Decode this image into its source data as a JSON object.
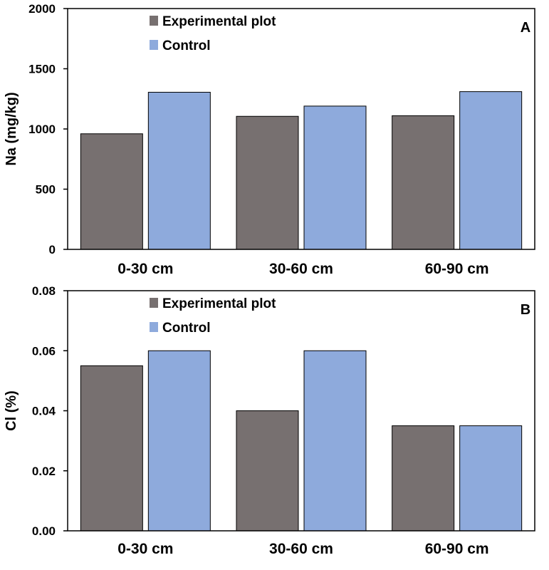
{
  "chart_data": [
    {
      "type": "bar",
      "panel_letter": "A",
      "title": "",
      "xlabel": "",
      "ylabel": "Na (mg/kg)",
      "categories": [
        "0-30 cm",
        "30-60 cm",
        "60-90 cm"
      ],
      "ylim": [
        0,
        2000
      ],
      "yticks": [
        "0",
        "500",
        "1000",
        "1500",
        "2000"
      ],
      "ytick_values": [
        0,
        500,
        1000,
        1500,
        2000
      ],
      "series": [
        {
          "name": "Experimental plot",
          "values": [
            960,
            1105,
            1110
          ],
          "color": "#777070"
        },
        {
          "name": "Control",
          "values": [
            1305,
            1190,
            1310
          ],
          "color": "#8eaadc"
        }
      ],
      "legend_position": "top-center",
      "grid": false
    },
    {
      "type": "bar",
      "panel_letter": "B",
      "title": "",
      "xlabel": "",
      "ylabel": "Cl (%)",
      "categories": [
        "0-30 cm",
        "30-60 cm",
        "60-90 cm"
      ],
      "ylim": [
        0,
        0.08
      ],
      "yticks": [
        "0.00",
        "0.02",
        "0.04",
        "0.06",
        "0.08"
      ],
      "ytick_values": [
        0,
        0.02,
        0.04,
        0.06,
        0.08
      ],
      "series": [
        {
          "name": "Experimental plot",
          "values": [
            0.055,
            0.04,
            0.035
          ],
          "color": "#777070"
        },
        {
          "name": "Control",
          "values": [
            0.06,
            0.06,
            0.035
          ],
          "color": "#8eaadc"
        }
      ],
      "legend_position": "top-center",
      "grid": false
    }
  ]
}
